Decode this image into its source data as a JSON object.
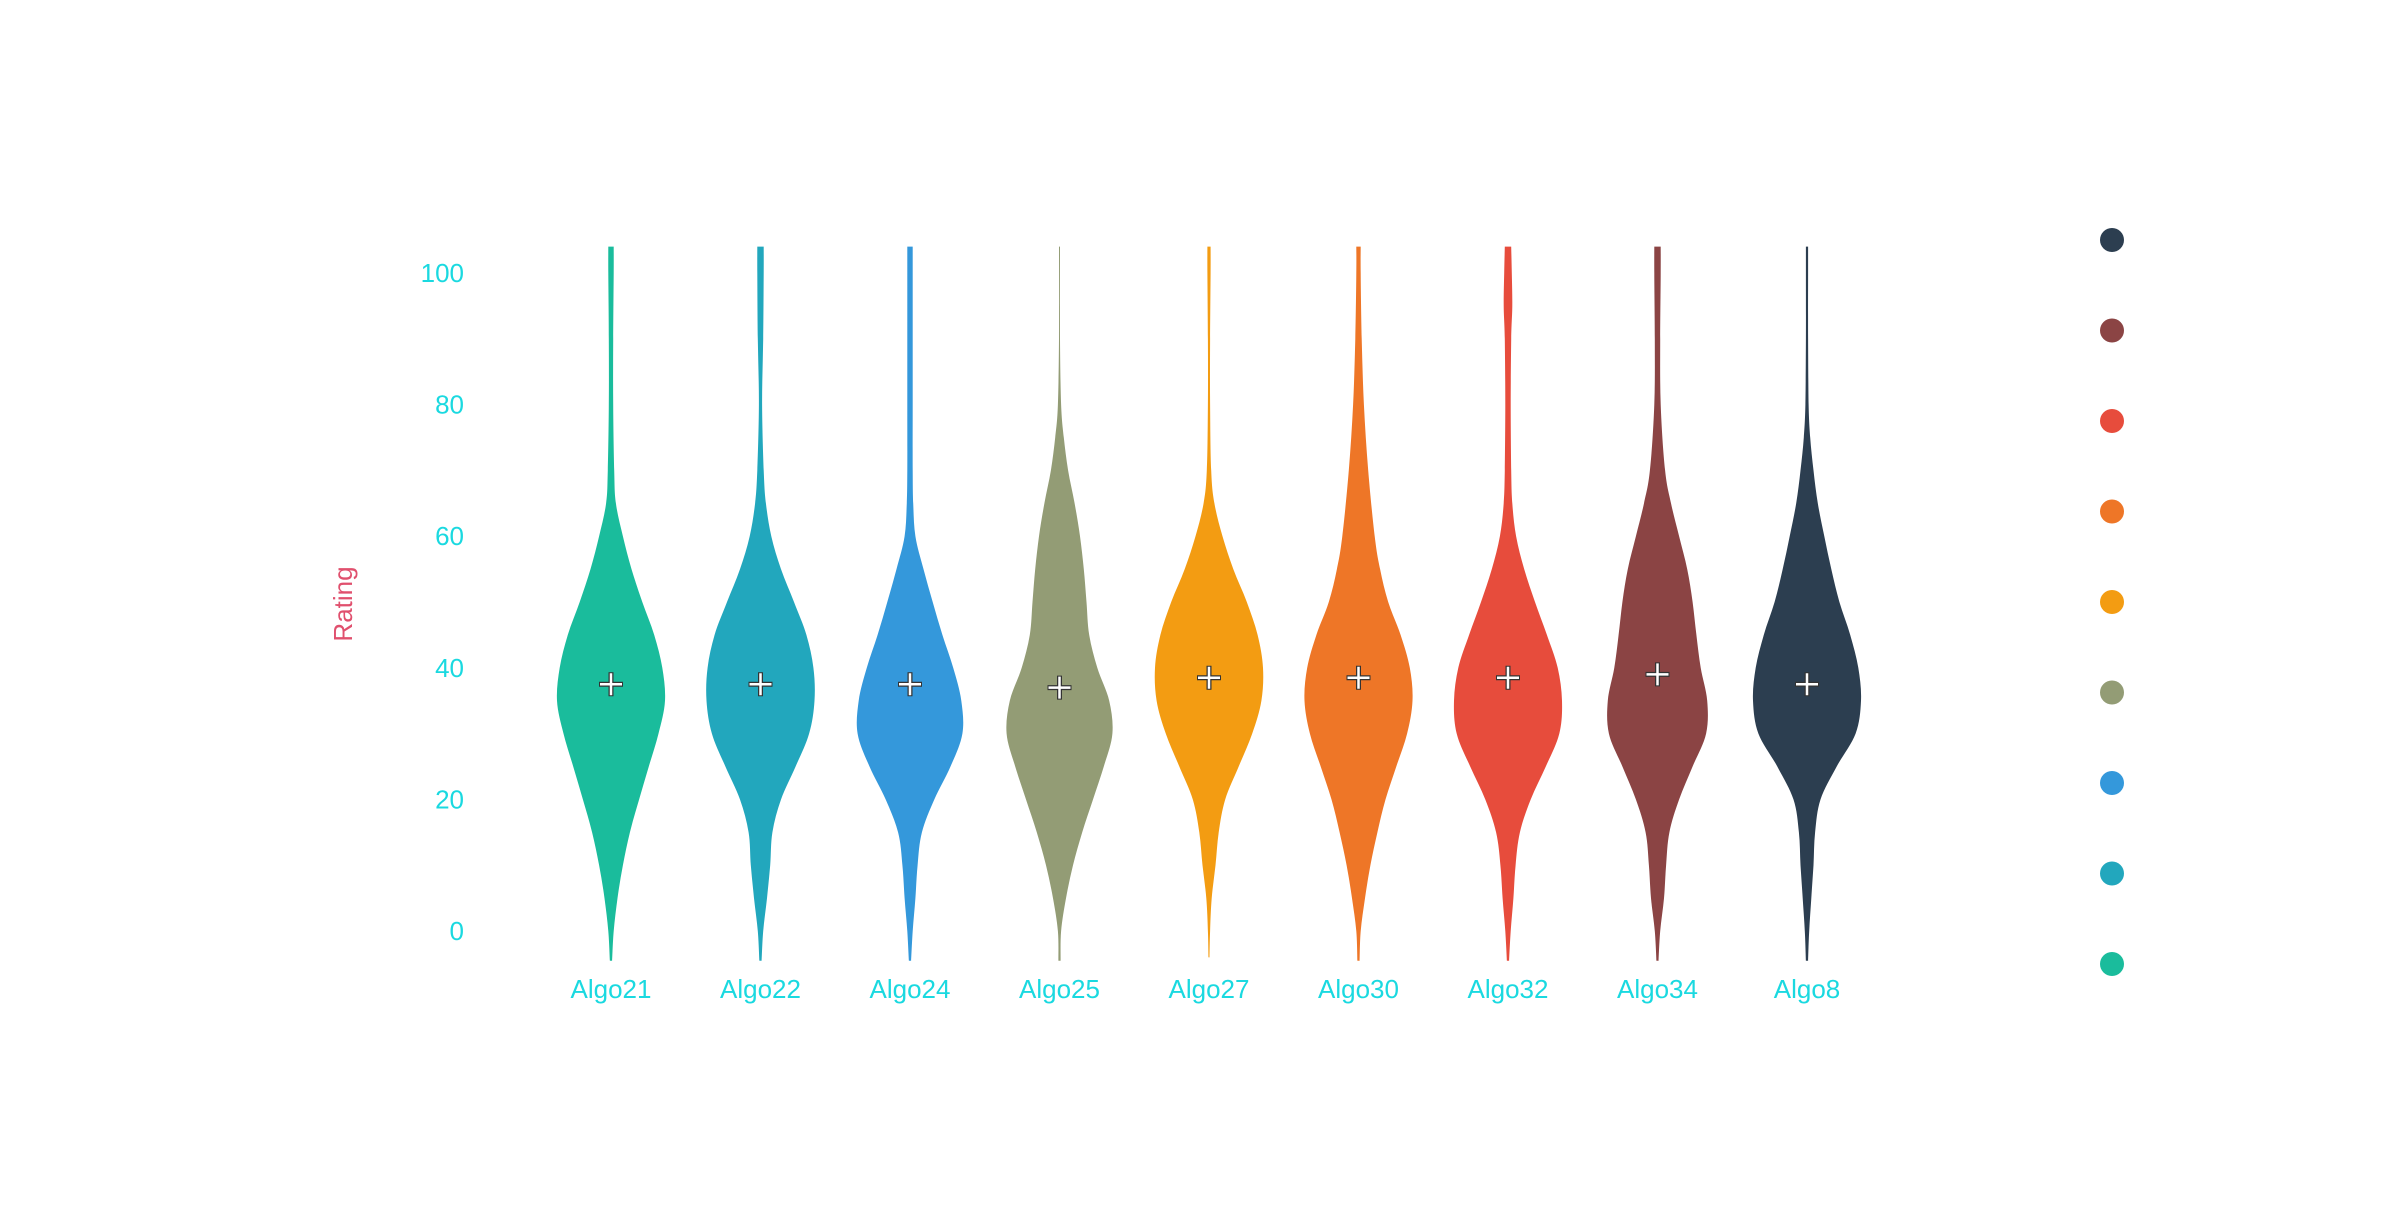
{
  "chart_data": {
    "type": "violin",
    "title": "",
    "xlabel": "",
    "ylabel": "Rating",
    "ylim": [
      -5,
      105
    ],
    "yticks": [
      0,
      20,
      40,
      60,
      80,
      100
    ],
    "grid": false,
    "legend_position": "right",
    "mean_marker": "plus",
    "colors": {
      "tick_label": "#1ad9e0",
      "axis_title": "#e0506e",
      "mean_marker": "#ffffff",
      "mean_marker_outline": "#333333"
    },
    "categories": [
      "Algo21",
      "Algo22",
      "Algo24",
      "Algo25",
      "Algo27",
      "Algo30",
      "Algo32",
      "Algo34",
      "Algo8"
    ],
    "series": [
      {
        "category": "Algo21",
        "color": "#1abc9c",
        "mean": 37.5,
        "y_min": -4.5,
        "y_max": 104,
        "density": [
          [
            -4.5,
            0.02
          ],
          [
            0,
            0.05
          ],
          [
            5,
            0.12
          ],
          [
            10,
            0.22
          ],
          [
            15,
            0.35
          ],
          [
            20,
            0.52
          ],
          [
            25,
            0.7
          ],
          [
            30,
            0.88
          ],
          [
            35,
            1.0
          ],
          [
            40,
            0.95
          ],
          [
            45,
            0.8
          ],
          [
            50,
            0.58
          ],
          [
            55,
            0.38
          ],
          [
            60,
            0.22
          ],
          [
            65,
            0.09
          ],
          [
            70,
            0.06
          ],
          [
            80,
            0.04
          ],
          [
            90,
            0.04
          ],
          [
            100,
            0.05
          ],
          [
            104,
            0.05
          ]
        ]
      },
      {
        "category": "Algo22",
        "color": "#22a7bd",
        "mean": 37.5,
        "y_min": -4.5,
        "y_max": 104,
        "density": [
          [
            -4.5,
            0.02
          ],
          [
            0,
            0.05
          ],
          [
            5,
            0.12
          ],
          [
            10,
            0.18
          ],
          [
            15,
            0.22
          ],
          [
            20,
            0.38
          ],
          [
            25,
            0.65
          ],
          [
            30,
            0.9
          ],
          [
            35,
            1.0
          ],
          [
            40,
            0.98
          ],
          [
            45,
            0.85
          ],
          [
            50,
            0.62
          ],
          [
            55,
            0.38
          ],
          [
            60,
            0.2
          ],
          [
            65,
            0.1
          ],
          [
            70,
            0.06
          ],
          [
            80,
            0.03
          ],
          [
            90,
            0.05
          ],
          [
            100,
            0.06
          ],
          [
            104,
            0.06
          ]
        ]
      },
      {
        "category": "Algo24",
        "color": "#3498db",
        "mean": 37.5,
        "y_min": -4.5,
        "y_max": 104,
        "density": [
          [
            -4.5,
            0.02
          ],
          [
            0,
            0.05
          ],
          [
            5,
            0.1
          ],
          [
            10,
            0.14
          ],
          [
            15,
            0.22
          ],
          [
            20,
            0.45
          ],
          [
            25,
            0.75
          ],
          [
            30,
            0.97
          ],
          [
            35,
            0.95
          ],
          [
            40,
            0.8
          ],
          [
            45,
            0.6
          ],
          [
            50,
            0.42
          ],
          [
            55,
            0.25
          ],
          [
            60,
            0.1
          ],
          [
            65,
            0.06
          ],
          [
            70,
            0.05
          ],
          [
            80,
            0.05
          ],
          [
            90,
            0.05
          ],
          [
            100,
            0.05
          ],
          [
            104,
            0.05
          ]
        ]
      },
      {
        "category": "Algo25",
        "color": "#939c75",
        "mean": 37.0,
        "y_min": -4.5,
        "y_max": 104,
        "density": [
          [
            -4.5,
            0.02
          ],
          [
            0,
            0.03
          ],
          [
            5,
            0.12
          ],
          [
            10,
            0.25
          ],
          [
            15,
            0.42
          ],
          [
            20,
            0.62
          ],
          [
            25,
            0.82
          ],
          [
            30,
            0.98
          ],
          [
            35,
            0.92
          ],
          [
            40,
            0.7
          ],
          [
            45,
            0.55
          ],
          [
            50,
            0.5
          ],
          [
            55,
            0.45
          ],
          [
            60,
            0.38
          ],
          [
            65,
            0.28
          ],
          [
            70,
            0.16
          ],
          [
            75,
            0.08
          ],
          [
            80,
            0.03
          ],
          [
            90,
            0.01
          ],
          [
            104,
            0.01
          ]
        ]
      },
      {
        "category": "Algo27",
        "color": "#f39c12",
        "mean": 38.5,
        "y_min": -4,
        "y_max": 104,
        "density": [
          [
            -4,
            0.01
          ],
          [
            0,
            0.02
          ],
          [
            5,
            0.05
          ],
          [
            10,
            0.12
          ],
          [
            15,
            0.18
          ],
          [
            20,
            0.3
          ],
          [
            25,
            0.55
          ],
          [
            30,
            0.8
          ],
          [
            35,
            0.97
          ],
          [
            40,
            1.0
          ],
          [
            45,
            0.9
          ],
          [
            50,
            0.7
          ],
          [
            55,
            0.45
          ],
          [
            60,
            0.25
          ],
          [
            65,
            0.1
          ],
          [
            70,
            0.04
          ],
          [
            80,
            0.02
          ],
          [
            90,
            0.02
          ],
          [
            100,
            0.03
          ],
          [
            104,
            0.03
          ]
        ]
      },
      {
        "category": "Algo30",
        "color": "#ee7627",
        "mean": 38.5,
        "y_min": -4.5,
        "y_max": 104,
        "density": [
          [
            -4.5,
            0.02
          ],
          [
            0,
            0.04
          ],
          [
            5,
            0.12
          ],
          [
            10,
            0.22
          ],
          [
            15,
            0.35
          ],
          [
            20,
            0.5
          ],
          [
            25,
            0.7
          ],
          [
            30,
            0.9
          ],
          [
            35,
            1.0
          ],
          [
            40,
            0.95
          ],
          [
            45,
            0.78
          ],
          [
            50,
            0.55
          ],
          [
            55,
            0.4
          ],
          [
            60,
            0.3
          ],
          [
            70,
            0.18
          ],
          [
            80,
            0.1
          ],
          [
            90,
            0.06
          ],
          [
            100,
            0.04
          ],
          [
            104,
            0.04
          ]
        ]
      },
      {
        "category": "Algo32",
        "color": "#e74c3c",
        "mean": 38.5,
        "y_min": -4.5,
        "y_max": 104,
        "density": [
          [
            -4.5,
            0.02
          ],
          [
            0,
            0.05
          ],
          [
            5,
            0.1
          ],
          [
            10,
            0.14
          ],
          [
            15,
            0.22
          ],
          [
            20,
            0.42
          ],
          [
            25,
            0.7
          ],
          [
            30,
            0.95
          ],
          [
            35,
            1.0
          ],
          [
            40,
            0.92
          ],
          [
            45,
            0.72
          ],
          [
            50,
            0.5
          ],
          [
            55,
            0.3
          ],
          [
            60,
            0.15
          ],
          [
            65,
            0.08
          ],
          [
            70,
            0.06
          ],
          [
            80,
            0.05
          ],
          [
            90,
            0.06
          ],
          [
            95,
            0.08
          ],
          [
            100,
            0.07
          ],
          [
            104,
            0.06
          ]
        ]
      },
      {
        "category": "Algo34",
        "color": "#8b4444",
        "mean": 39.0,
        "y_min": -4.5,
        "y_max": 104,
        "density": [
          [
            -4.5,
            0.02
          ],
          [
            0,
            0.05
          ],
          [
            5,
            0.12
          ],
          [
            10,
            0.16
          ],
          [
            15,
            0.22
          ],
          [
            20,
            0.4
          ],
          [
            25,
            0.65
          ],
          [
            30,
            0.9
          ],
          [
            35,
            0.92
          ],
          [
            40,
            0.8
          ],
          [
            45,
            0.72
          ],
          [
            50,
            0.65
          ],
          [
            55,
            0.55
          ],
          [
            60,
            0.4
          ],
          [
            65,
            0.25
          ],
          [
            70,
            0.14
          ],
          [
            80,
            0.06
          ],
          [
            90,
            0.05
          ],
          [
            100,
            0.06
          ],
          [
            104,
            0.06
          ]
        ]
      },
      {
        "category": "Algo8",
        "color": "#2c3e50",
        "mean": 37.5,
        "y_min": -4.5,
        "y_max": 104,
        "density": [
          [
            -4.5,
            0.02
          ],
          [
            0,
            0.04
          ],
          [
            5,
            0.08
          ],
          [
            10,
            0.12
          ],
          [
            15,
            0.15
          ],
          [
            20,
            0.25
          ],
          [
            25,
            0.55
          ],
          [
            30,
            0.9
          ],
          [
            35,
            1.0
          ],
          [
            40,
            0.95
          ],
          [
            45,
            0.8
          ],
          [
            50,
            0.6
          ],
          [
            55,
            0.45
          ],
          [
            60,
            0.32
          ],
          [
            65,
            0.2
          ],
          [
            70,
            0.12
          ],
          [
            75,
            0.06
          ],
          [
            80,
            0.03
          ],
          [
            90,
            0.02
          ],
          [
            100,
            0.02
          ],
          [
            104,
            0.02
          ]
        ]
      }
    ],
    "legend": [
      {
        "color": "#2c3e50"
      },
      {
        "color": "#8b4444"
      },
      {
        "color": "#e74c3c"
      },
      {
        "color": "#ee7627"
      },
      {
        "color": "#f39c12"
      },
      {
        "color": "#939c75"
      },
      {
        "color": "#3498db"
      },
      {
        "color": "#22a7bd"
      },
      {
        "color": "#1abc9c"
      }
    ]
  }
}
